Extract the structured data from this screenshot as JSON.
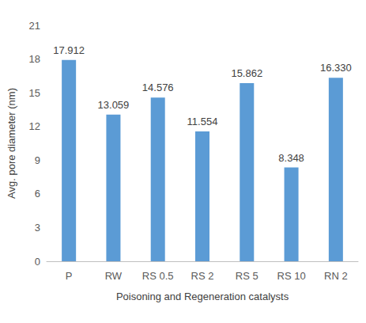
{
  "chart_data": {
    "type": "bar",
    "x_label": "Poisoning and Regeneration catalysts",
    "y_label": "Avg. pore diameter (nm)",
    "categories": [
      "P",
      "RW",
      "RS 0.5",
      "RS 2",
      "RS 5",
      "RS 10",
      "RN 2"
    ],
    "values": [
      17.912,
      13.059,
      14.576,
      11.554,
      15.862,
      8.348,
      16.33
    ],
    "value_labels": [
      "17.912",
      "13.059",
      "14.576",
      "11.554",
      "15.862",
      "8.348",
      "16.330"
    ],
    "color": "#5b9bd5",
    "ylim": [
      0,
      21
    ],
    "yticks": [
      0,
      3,
      6,
      9,
      12,
      15,
      18,
      21
    ],
    "grid": false,
    "data_labels": true
  }
}
